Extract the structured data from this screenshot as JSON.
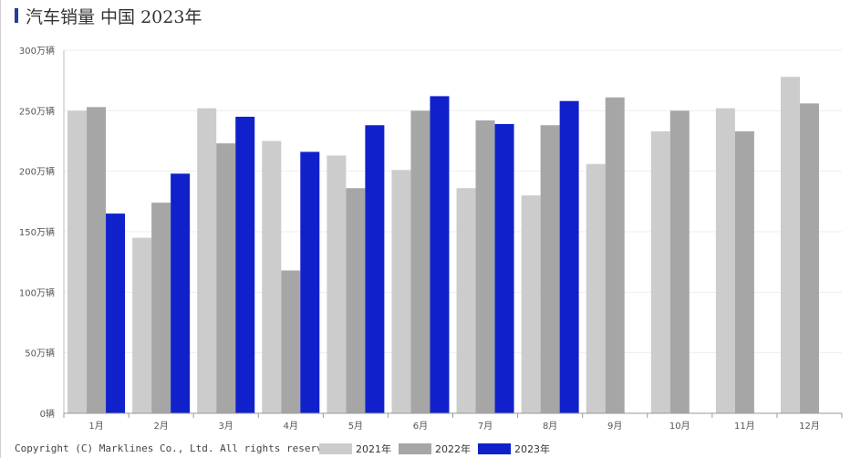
{
  "header": {
    "title": "汽车销量 中国 2023年"
  },
  "footer": {
    "copyright": "Copyright (C) Marklines Co., Ltd. All rights reserved."
  },
  "colors": {
    "series_2021": "#cccccc",
    "series_2022": "#a6a6a6",
    "series_2023": "#1021cc",
    "title_accent": "#1f3f9a"
  },
  "chart_data": {
    "type": "bar",
    "title": "汽车销量 中国 2023年",
    "xlabel": "",
    "ylabel": "",
    "ylim": [
      0,
      300
    ],
    "y_ticks": [
      {
        "value": 0,
        "label": "0辆"
      },
      {
        "value": 50,
        "label": "50万辆"
      },
      {
        "value": 100,
        "label": "100万辆"
      },
      {
        "value": 150,
        "label": "150万辆"
      },
      {
        "value": 200,
        "label": "200万辆"
      },
      {
        "value": 250,
        "label": "250万辆"
      },
      {
        "value": 300,
        "label": "300万辆"
      }
    ],
    "categories": [
      "1月",
      "2月",
      "3月",
      "4月",
      "5月",
      "6月",
      "7月",
      "8月",
      "9月",
      "10月",
      "11月",
      "12月"
    ],
    "legend_position": "bottom",
    "grid": true,
    "series": [
      {
        "name": "2021年",
        "color": "#cccccc",
        "values": [
          250,
          145,
          252,
          225,
          213,
          201,
          186,
          180,
          206,
          233,
          252,
          278
        ]
      },
      {
        "name": "2022年",
        "color": "#a6a6a6",
        "values": [
          253,
          174,
          223,
          118,
          186,
          250,
          242,
          238,
          261,
          250,
          233,
          256
        ]
      },
      {
        "name": "2023年",
        "color": "#1021cc",
        "values": [
          165,
          198,
          245,
          216,
          238,
          262,
          239,
          258,
          null,
          null,
          null,
          null
        ]
      }
    ]
  }
}
